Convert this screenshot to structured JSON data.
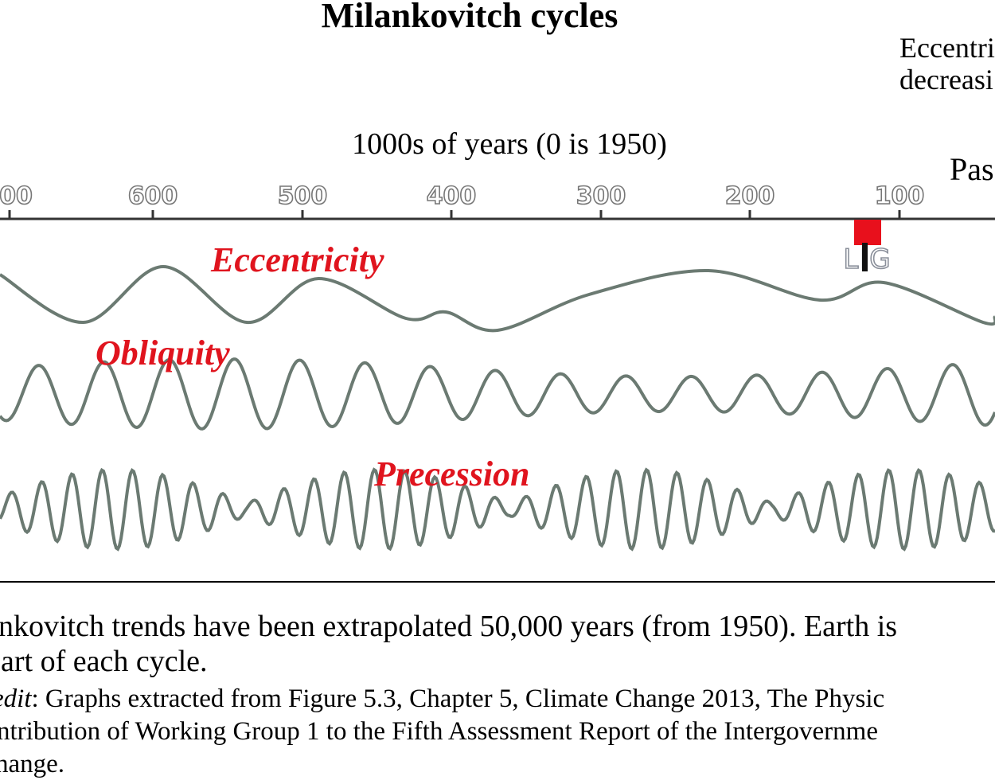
{
  "title": "Milankovitch cycles",
  "note": [
    "Eccentri",
    "decreasi"
  ],
  "axis_label": "1000s of years (0 is 1950)",
  "past_label": "Pas",
  "ticks": [
    "00",
    "600",
    "500",
    "400",
    "300",
    "200",
    "100"
  ],
  "curves": [
    "Eccentricity",
    "Obliquity",
    "Precession"
  ],
  "event_label": "LIG",
  "caption": [
    "nkovitch trends have been extrapolated 50,000 years (from 1950). Earth is",
    "part of each cycle."
  ],
  "credit": {
    "lead": "edit",
    "lines": [
      ": Graphs extracted from Figure 5.3, Chapter 5, Climate Change 2013, The Physic",
      "ntribution of Working Group 1 to the Fifth Assessment Report of the Intergovernme",
      "hange."
    ]
  }
}
